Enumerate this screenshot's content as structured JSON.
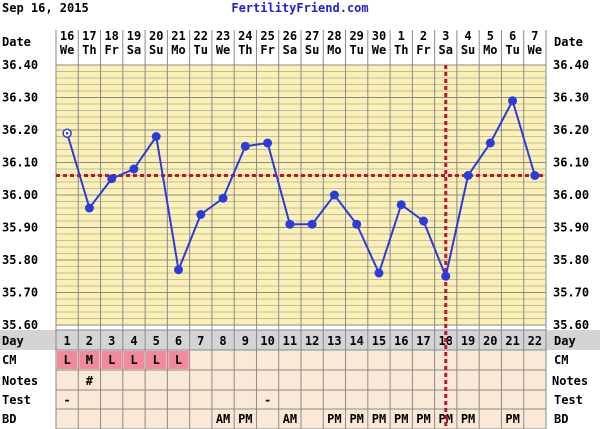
{
  "header": {
    "date": "Sep 16, 2015",
    "site": "FertilityFriend.com"
  },
  "row_labels": {
    "date": "Date",
    "day": "Day",
    "cm": "CM",
    "notes": "Notes",
    "test": "Test",
    "bd": "BD"
  },
  "chart_data": {
    "type": "line",
    "title": "",
    "dates": [
      "16",
      "17",
      "18",
      "19",
      "20",
      "21",
      "22",
      "23",
      "24",
      "25",
      "26",
      "27",
      "28",
      "29",
      "30",
      "1",
      "2",
      "3",
      "4",
      "5",
      "6",
      "7"
    ],
    "weekdays": [
      "We",
      "Th",
      "Fr",
      "Sa",
      "Su",
      "Mo",
      "Tu",
      "We",
      "Th",
      "Fr",
      "Sa",
      "Su",
      "Mo",
      "Tu",
      "We",
      "Th",
      "Fr",
      "Sa",
      "Su",
      "Mo",
      "Tu",
      "We"
    ],
    "cycle_days": [
      1,
      2,
      3,
      4,
      5,
      6,
      7,
      8,
      9,
      10,
      11,
      12,
      13,
      14,
      15,
      16,
      17,
      18,
      19,
      20,
      21,
      22
    ],
    "temperatures": [
      36.19,
      35.96,
      36.05,
      36.08,
      36.18,
      35.77,
      35.94,
      35.99,
      36.15,
      36.16,
      35.91,
      35.91,
      36.0,
      35.91,
      35.76,
      35.97,
      35.92,
      35.75,
      36.06,
      36.16,
      36.29,
      36.06
    ],
    "discarded_point_days": [
      1
    ],
    "ylim": [
      35.6,
      36.4
    ],
    "y_ticks": [
      "36.40",
      "36.30",
      "36.20",
      "36.10",
      "36.00",
      "35.90",
      "35.80",
      "35.70",
      "35.60"
    ],
    "coverline": 36.06,
    "ovulation_day": 18,
    "grid": true,
    "cm": [
      "L",
      "M",
      "L",
      "L",
      "L",
      "L",
      "",
      "",
      "",
      "",
      "",
      "",
      "",
      "",
      "",
      "",
      "",
      "",
      "",
      "",
      "",
      ""
    ],
    "notes": [
      "",
      "#",
      "",
      "",
      "",
      "",
      "",
      "",
      "",
      "",
      "",
      "",
      "",
      "",
      "",
      "",
      "",
      "",
      "",
      "",
      "",
      ""
    ],
    "test": [
      "-",
      "",
      "",
      "",
      "",
      "",
      "",
      "",
      "",
      "-",
      "",
      "",
      "",
      "",
      "",
      "",
      "",
      "",
      "",
      "",
      "",
      ""
    ],
    "bd": [
      "",
      "",
      "",
      "",
      "",
      "",
      "",
      "AM",
      "PM",
      "",
      "AM",
      "",
      "PM",
      "PM",
      "PM",
      "PM",
      "PM",
      "PM",
      "PM",
      "",
      "PM",
      ""
    ],
    "colors": {
      "line": "#2b3bdc",
      "coverline": "#c8102e",
      "plot_bg": "#fbf1b6",
      "grid": "#8a8a8a",
      "row_bg": "#fbe9d8",
      "day_row_bg": "#d4d4d4",
      "cm_bg": "#f28a9c",
      "brand": "#1e22cf"
    }
  }
}
